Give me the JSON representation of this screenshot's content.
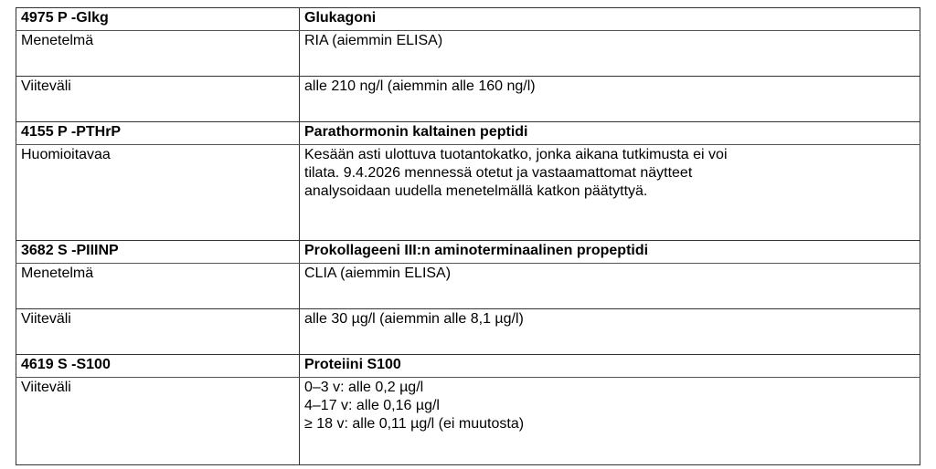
{
  "sections": [
    {
      "code": "4975 P -Glkg",
      "name": "Glukagoni",
      "rows": [
        {
          "label": "Menetelmä",
          "lines": [
            "RIA (aiemmin ELISA)"
          ]
        },
        {
          "label": "Viiteväli",
          "lines": [
            "alle 210 ng/l (aiemmin alle 160 ng/l)"
          ]
        }
      ]
    },
    {
      "code": "4155 P -PTHrP",
      "name": "Parathormonin kaltainen peptidi",
      "rows": [
        {
          "label": "Huomioitavaa",
          "lines": [
            "Kesään asti ulottuva tuotantokatko, jonka aikana tutkimusta ei voi",
            "tilata. 9.4.2026 mennessä otetut ja vastaamattomat näytteet",
            "analysoidaan uudella menetelmällä katkon päätyttyä."
          ]
        }
      ]
    },
    {
      "code": "3682 S -PIIINP",
      "name": "Prokollageeni III:n aminoterminaalinen propeptidi",
      "rows": [
        {
          "label": "Menetelmä",
          "lines": [
            "CLIA (aiemmin ELISA)"
          ]
        },
        {
          "label": "Viiteväli",
          "lines": [
            "alle 30 µg/l (aiemmin alle 8,1 µg/l)"
          ]
        }
      ]
    },
    {
      "code": "4619 S -S100",
      "name": "Proteiini S100",
      "rows": [
        {
          "label": "Viiteväli",
          "lines": [
            "0–3 v: alle 0,2 µg/l",
            "4–17 v: alle 0,16 µg/l",
            "≥ 18 v: alle 0,11 µg/l (ei muutosta)"
          ]
        }
      ]
    }
  ]
}
